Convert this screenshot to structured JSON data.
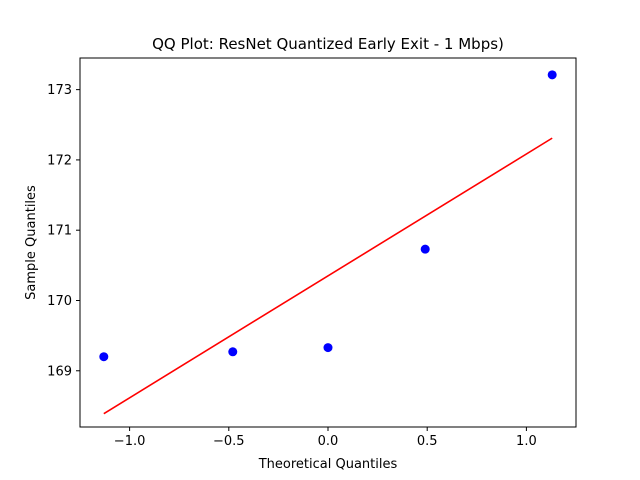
{
  "chart_data": {
    "type": "scatter",
    "title": "QQ Plot: ResNet Quantized Early Exit - 1 Mbps)",
    "xlabel": "Theoretical Quantiles",
    "ylabel": "Sample Quantiles",
    "xlim": [
      -1.25,
      1.25
    ],
    "ylim": [
      168.2,
      173.45
    ],
    "x_ticks": [
      -1.0,
      -0.5,
      0.0,
      0.5,
      1.0
    ],
    "x_tick_labels": [
      "−1.0",
      "−0.5",
      "0.0",
      "0.5",
      "1.0"
    ],
    "y_ticks": [
      169,
      170,
      171,
      172,
      173
    ],
    "y_tick_labels": [
      "169",
      "170",
      "171",
      "172",
      "173"
    ],
    "grid": false,
    "series": [
      {
        "type": "scatter",
        "x": [
          -1.13,
          -0.48,
          0.0,
          0.49,
          1.13
        ],
        "y": [
          169.2,
          169.27,
          169.33,
          170.73,
          173.21
        ],
        "color": "#0000ff"
      },
      {
        "type": "line",
        "x": [
          -1.13,
          1.13
        ],
        "y": [
          168.39,
          172.31
        ],
        "color": "#ff0000"
      }
    ]
  }
}
